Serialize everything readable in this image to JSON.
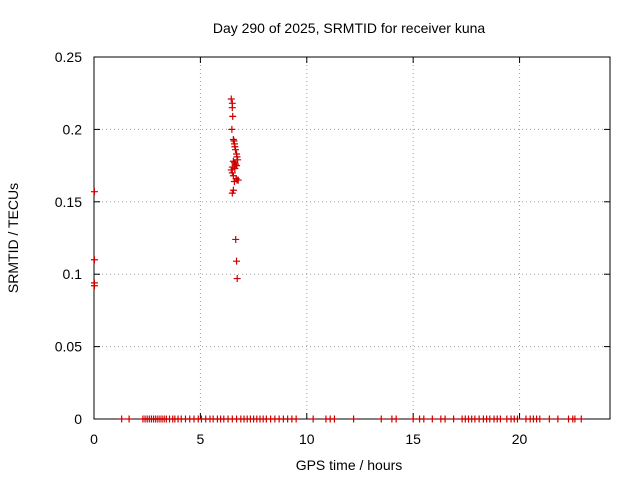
{
  "chart_data": {
    "type": "scatter",
    "title": "Day 290 of 2025, SRMTID for receiver kuna",
    "xlabel": "GPS time / hours",
    "ylabel": "SRMTID / TECUs",
    "xlim": [
      0,
      24.25
    ],
    "ylim": [
      0,
      0.25
    ],
    "xticks": [
      0,
      5,
      10,
      15,
      20
    ],
    "xtick_labels": [
      "0",
      "5",
      "10",
      "15",
      "20"
    ],
    "yticks": [
      0,
      0.05,
      0.1,
      0.15,
      0.2,
      0.25
    ],
    "ytick_labels": [
      "0",
      "0.05",
      "0.1",
      "0.15",
      "0.2",
      "0.25"
    ],
    "grid": true,
    "marker": "+",
    "series": [
      {
        "name": "SRMTID",
        "color": "#cc0000",
        "x": [
          0.02,
          0.02,
          0.02,
          0.02,
          6.45,
          6.5,
          6.5,
          6.52,
          6.48,
          6.55,
          6.58,
          6.6,
          6.62,
          6.65,
          6.7,
          6.72,
          6.75,
          6.55,
          6.6,
          6.65,
          6.7,
          6.5,
          6.58,
          6.62,
          6.45,
          6.5,
          6.55,
          6.68,
          6.72,
          6.6,
          6.55,
          6.5,
          6.66,
          6.7,
          6.73,
          6.78,
          1.3,
          1.65,
          2.3,
          2.4,
          2.5,
          2.6,
          2.7,
          2.8,
          2.9,
          3.0,
          3.1,
          3.2,
          3.3,
          3.4,
          3.55,
          3.7,
          3.8,
          3.95,
          4.1,
          4.3,
          4.5,
          4.7,
          4.9,
          5.05,
          5.25,
          5.45,
          5.6,
          5.8,
          5.95,
          6.1,
          6.3,
          6.5,
          6.7,
          6.9,
          7.05,
          7.2,
          7.35,
          7.5,
          7.65,
          7.8,
          7.95,
          8.1,
          8.3,
          8.5,
          8.7,
          8.9,
          9.1,
          9.3,
          9.5,
          10.3,
          10.9,
          11.1,
          11.3,
          12.2,
          13.5,
          14.0,
          14.2,
          15.0,
          15.3,
          15.5,
          15.9,
          16.3,
          16.5,
          16.9,
          17.3,
          17.45,
          17.6,
          17.75,
          17.9,
          18.1,
          18.3,
          18.45,
          18.6,
          18.8,
          18.95,
          19.1,
          19.4,
          19.6,
          19.75,
          19.9,
          20.3,
          20.5,
          20.65,
          20.8,
          20.95,
          21.4,
          21.8,
          22.3,
          22.5,
          22.6,
          22.9
        ],
        "y": [
          0.157,
          0.11,
          0.094,
          0.092,
          0.221,
          0.218,
          0.215,
          0.209,
          0.2,
          0.193,
          0.192,
          0.19,
          0.188,
          0.186,
          0.183,
          0.181,
          0.179,
          0.178,
          0.177,
          0.176,
          0.175,
          0.174,
          0.174,
          0.173,
          0.172,
          0.17,
          0.168,
          0.166,
          0.165,
          0.164,
          0.158,
          0.156,
          0.124,
          0.109,
          0.097,
          0.165,
          0,
          0,
          0,
          0,
          0,
          0,
          0,
          0,
          0,
          0,
          0,
          0,
          0,
          0,
          0,
          0,
          0,
          0,
          0,
          0,
          0,
          0,
          0,
          0,
          0,
          0,
          0,
          0,
          0,
          0,
          0,
          0,
          0,
          0,
          0,
          0,
          0,
          0,
          0,
          0,
          0,
          0,
          0,
          0,
          0,
          0,
          0,
          0,
          0,
          0,
          0,
          0,
          0,
          0,
          0,
          0,
          0,
          0,
          0,
          0,
          0,
          0,
          0,
          0,
          0,
          0,
          0,
          0,
          0,
          0,
          0,
          0,
          0,
          0,
          0,
          0,
          0,
          0,
          0,
          0,
          0,
          0,
          0,
          0,
          0,
          0,
          0,
          0,
          0,
          0,
          0
        ]
      }
    ]
  }
}
